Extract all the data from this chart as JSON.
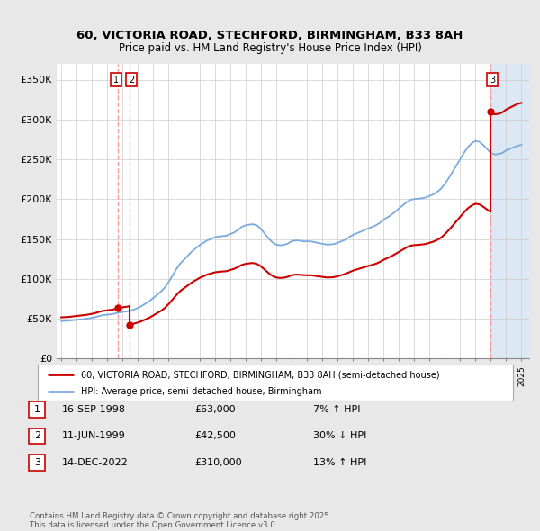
{
  "title_line1": "60, VICTORIA ROAD, STECHFORD, BIRMINGHAM, B33 8AH",
  "title_line2": "Price paid vs. HM Land Registry's House Price Index (HPI)",
  "background_color": "#e8e8e8",
  "plot_bg_color": "#ffffff",
  "shade_bg_color": "#dde8f5",
  "red_color": "#cc0000",
  "blue_color": "#7aaadd",
  "sale_prices": [
    63000,
    42500,
    310000
  ],
  "sale_labels": [
    "1",
    "2",
    "3"
  ],
  "sale_info": [
    {
      "num": "1",
      "date": "16-SEP-1998",
      "price": "£63,000",
      "change": "7% ↑ HPI"
    },
    {
      "num": "2",
      "date": "11-JUN-1999",
      "price": "£42,500",
      "change": "30% ↓ HPI"
    },
    {
      "num": "3",
      "date": "14-DEC-2022",
      "price": "£310,000",
      "change": "13% ↑ HPI"
    }
  ],
  "legend_entries": [
    "60, VICTORIA ROAD, STECHFORD, BIRMINGHAM, B33 8AH (semi-detached house)",
    "HPI: Average price, semi-detached house, Birmingham"
  ],
  "footer_text": "Contains HM Land Registry data © Crown copyright and database right 2025.\nThis data is licensed under the Open Government Licence v3.0.",
  "ylim": [
    0,
    370000
  ],
  "yticks": [
    0,
    50000,
    100000,
    150000,
    200000,
    250000,
    300000,
    350000
  ],
  "ytick_labels": [
    "£0",
    "£50K",
    "£100K",
    "£150K",
    "£200K",
    "£250K",
    "£300K",
    "£350K"
  ],
  "hpi_years": [
    1995.0,
    1995.25,
    1995.5,
    1995.75,
    1996.0,
    1996.25,
    1996.5,
    1996.75,
    1997.0,
    1997.25,
    1997.5,
    1997.75,
    1998.0,
    1998.25,
    1998.5,
    1998.75,
    1999.0,
    1999.25,
    1999.5,
    1999.75,
    2000.0,
    2000.25,
    2000.5,
    2000.75,
    2001.0,
    2001.25,
    2001.5,
    2001.75,
    2002.0,
    2002.25,
    2002.5,
    2002.75,
    2003.0,
    2003.25,
    2003.5,
    2003.75,
    2004.0,
    2004.25,
    2004.5,
    2004.75,
    2005.0,
    2005.25,
    2005.5,
    2005.75,
    2006.0,
    2006.25,
    2006.5,
    2006.75,
    2007.0,
    2007.25,
    2007.5,
    2007.75,
    2008.0,
    2008.25,
    2008.5,
    2008.75,
    2009.0,
    2009.25,
    2009.5,
    2009.75,
    2010.0,
    2010.25,
    2010.5,
    2010.75,
    2011.0,
    2011.25,
    2011.5,
    2011.75,
    2012.0,
    2012.25,
    2012.5,
    2012.75,
    2013.0,
    2013.25,
    2013.5,
    2013.75,
    2014.0,
    2014.25,
    2014.5,
    2014.75,
    2015.0,
    2015.25,
    2015.5,
    2015.75,
    2016.0,
    2016.25,
    2016.5,
    2016.75,
    2017.0,
    2017.25,
    2017.5,
    2017.75,
    2018.0,
    2018.25,
    2018.5,
    2018.75,
    2019.0,
    2019.25,
    2019.5,
    2019.75,
    2020.0,
    2020.25,
    2020.5,
    2020.75,
    2021.0,
    2021.25,
    2021.5,
    2021.75,
    2022.0,
    2022.25,
    2022.5,
    2022.75,
    2023.0,
    2023.25,
    2023.5,
    2023.75,
    2024.0,
    2024.25,
    2024.5,
    2024.75,
    2025.0
  ],
  "hpi_values": [
    47000,
    47200,
    47500,
    48000,
    48500,
    49000,
    49500,
    50200,
    51000,
    52000,
    53500,
    54500,
    55000,
    55500,
    56500,
    57500,
    58500,
    59000,
    60000,
    61500,
    63500,
    66000,
    69000,
    72000,
    76000,
    80000,
    84000,
    89000,
    96000,
    104000,
    112000,
    119000,
    124000,
    129000,
    134000,
    138000,
    142000,
    145000,
    148000,
    150000,
    152000,
    153000,
    153500,
    154000,
    156000,
    158000,
    161000,
    165000,
    167000,
    168000,
    168500,
    167000,
    163000,
    157000,
    151000,
    146000,
    143000,
    142000,
    142500,
    144000,
    147000,
    148000,
    148000,
    147000,
    147000,
    147000,
    146000,
    145000,
    144000,
    143000,
    143000,
    143500,
    145000,
    147000,
    149000,
    152000,
    155000,
    157000,
    159000,
    161000,
    163000,
    165000,
    167000,
    170000,
    174000,
    177000,
    180000,
    184000,
    188000,
    192000,
    196000,
    199000,
    200000,
    200500,
    201000,
    202000,
    204000,
    206000,
    209000,
    213000,
    219000,
    226000,
    234000,
    242000,
    250000,
    258000,
    265000,
    270000,
    273000,
    272000,
    268000,
    263000,
    258000,
    256000,
    256500,
    258000,
    261000,
    263000,
    265000,
    267000,
    268000
  ]
}
